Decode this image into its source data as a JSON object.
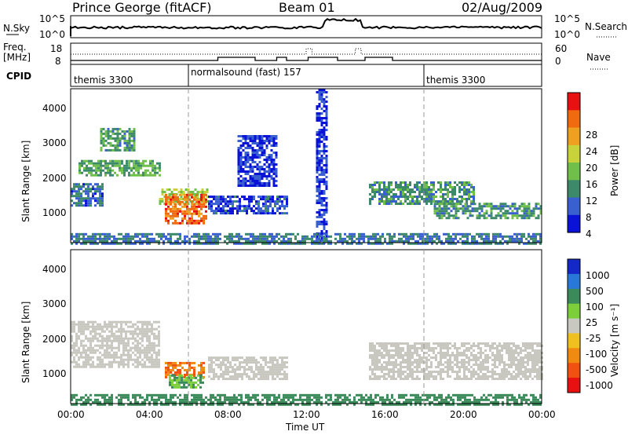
{
  "header": {
    "station": "Prince George (fitACF)",
    "beam": "Beam 01",
    "date": "02/Aug/2009"
  },
  "noise_panel": {
    "left_label": "N.Sky",
    "right_label": "N.Search",
    "left_ticks": [
      "10^5",
      "10^0"
    ],
    "right_ticks": [
      "10^5",
      "10^0"
    ]
  },
  "freq_panel": {
    "left_label_1": "Freq.",
    "left_label_2": "[MHz]",
    "right_label": "Nave",
    "left_ticks": [
      "18",
      "8"
    ],
    "right_ticks": [
      "60",
      "0"
    ]
  },
  "cpid": {
    "label": "CPID",
    "segments": [
      {
        "text": "themis 3300",
        "start_hour": 0
      },
      {
        "text": "normalsound (fast) 157",
        "start_hour": 6
      },
      {
        "text": "themis 3300",
        "start_hour": 18
      }
    ]
  },
  "power_panel": {
    "ylabel": "Slant Range [km]",
    "colorbar_label": "Power [dB]",
    "colorbar_ticks": [
      "28",
      "24",
      "20",
      "16",
      "12",
      "8",
      "4"
    ],
    "colors": [
      "#0a12d8",
      "#3a5fcf",
      "#3d8a6b",
      "#6fbf4a",
      "#c8d23a",
      "#f0a020",
      "#f06a10",
      "#e81010"
    ]
  },
  "velocity_panel": {
    "ylabel": "Slant Range [km]",
    "colorbar_label": "Velocity [m s⁻¹]",
    "colorbar_ticks": [
      "1000",
      "500",
      "100",
      "25",
      "-25",
      "-100",
      "-500",
      "-1000"
    ],
    "colors": [
      "#1428c8",
      "#2878d8",
      "#3a8a5a",
      "#7ccf3a",
      "#c8c8c0",
      "#f0c020",
      "#f08a10",
      "#f05010",
      "#e81010"
    ]
  },
  "axes": {
    "y_ticks": [
      "4000",
      "3000",
      "2000",
      "1000"
    ],
    "x_ticks": [
      "00:00",
      "04:00",
      "08:00",
      "12:00",
      "16:00",
      "20:00",
      "00:00"
    ],
    "xlabel": "Time UT"
  },
  "chart_data": {
    "type": "heatmap",
    "title": "Prince George (fitACF)",
    "x_range_hours": [
      0,
      24
    ],
    "y_range_km": [
      180,
      4500
    ],
    "power_features": [
      {
        "t0": 0.0,
        "t1": 1.6,
        "r0": 1250,
        "r1": 1850,
        "power": 9
      },
      {
        "t0": 0.4,
        "t1": 4.5,
        "r0": 2050,
        "r1": 2500,
        "power": 14
      },
      {
        "t0": 1.5,
        "t1": 3.2,
        "r0": 2800,
        "r1": 3400,
        "power": 13
      },
      {
        "t0": 4.5,
        "t1": 7.0,
        "r0": 1300,
        "r1": 1700,
        "power": 18
      },
      {
        "t0": 4.8,
        "t1": 6.9,
        "r0": 700,
        "r1": 1550,
        "power": 28
      },
      {
        "t0": 7.0,
        "t1": 11.0,
        "r0": 1000,
        "r1": 1500,
        "power": 7
      },
      {
        "t0": 8.5,
        "t1": 10.5,
        "r0": 1800,
        "r1": 3200,
        "power": 6
      },
      {
        "t0": 12.5,
        "t1": 13.0,
        "r0": 200,
        "r1": 4500,
        "power": 6
      },
      {
        "t0": 15.2,
        "t1": 20.5,
        "r0": 1300,
        "r1": 1900,
        "power": 12
      },
      {
        "t0": 18.5,
        "t1": 24.0,
        "r0": 900,
        "r1": 1300,
        "power": 12
      },
      {
        "t0": 0.0,
        "t1": 24.0,
        "r0": 180,
        "r1": 450,
        "power": 10
      }
    ],
    "velocity_features": [
      {
        "t0": 0.0,
        "t1": 4.5,
        "r0": 1200,
        "r1": 2500,
        "velocity": 0
      },
      {
        "t0": 4.8,
        "t1": 6.8,
        "r0": 950,
        "r1": 1350,
        "velocity": -300
      },
      {
        "t0": 5.0,
        "t1": 6.8,
        "r0": 650,
        "r1": 1000,
        "velocity": 60
      },
      {
        "t0": 7.0,
        "t1": 11.0,
        "r0": 900,
        "r1": 1500,
        "velocity": 0
      },
      {
        "t0": 15.2,
        "t1": 24.0,
        "r0": 900,
        "r1": 1900,
        "velocity": 0
      },
      {
        "t0": 0.0,
        "t1": 24.0,
        "r0": 180,
        "r1": 450,
        "velocity": 80
      }
    ]
  }
}
